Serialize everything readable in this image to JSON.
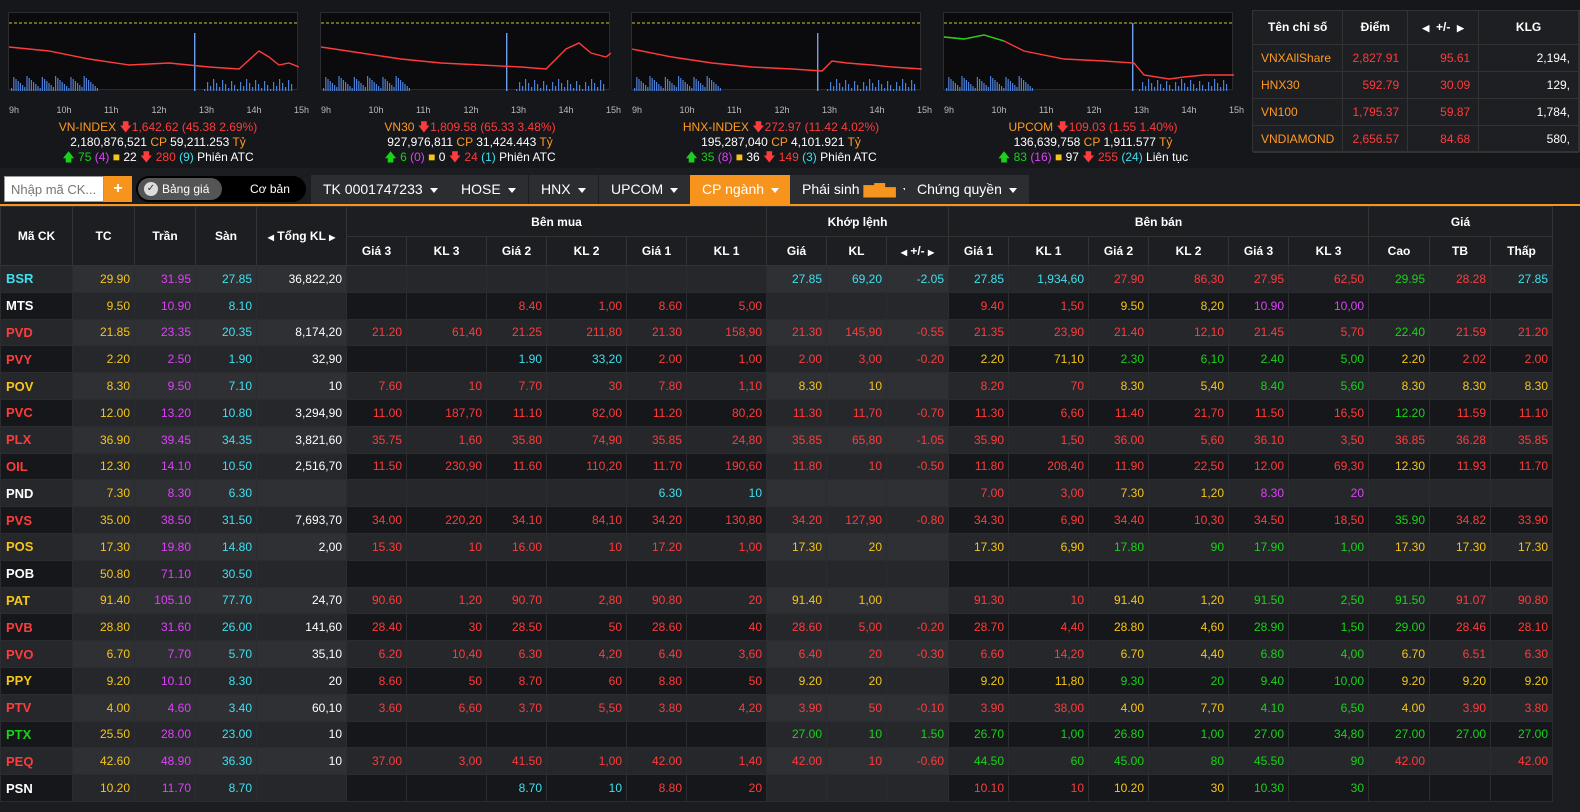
{
  "colors": {
    "up": "#19d219",
    "down": "#ff3b3b",
    "ref": "#f5c518",
    "ceil": "#e040fb",
    "floor": "#3ee0f0",
    "accent": "#f7941d"
  },
  "time_ticks": [
    "9h",
    "10h",
    "11h",
    "12h",
    "13h",
    "14h",
    "15h"
  ],
  "indices": [
    {
      "name": "VN-INDEX",
      "value": "1,642.62",
      "change": "(45.38 2.69%)",
      "volume": "2,180,876,521",
      "cp_label": "CP",
      "cp_value": "59,211.253",
      "unit": "Tỷ",
      "adv": "75",
      "ceil": "(4)",
      "unch": "22",
      "dec": "280",
      "floor": "(9)",
      "session": "Phiên ATC"
    },
    {
      "name": "VN30",
      "value": "1,809.58",
      "change": "(65.33 3.48%)",
      "volume": "927,976,811",
      "cp_label": "CP",
      "cp_value": "31,424.443",
      "unit": "Tỷ",
      "adv": "6",
      "ceil": "(0)",
      "unch": "0",
      "dec": "24",
      "floor": "(1)",
      "session": "Phiên ATC"
    },
    {
      "name": "HNX-INDEX",
      "value": "272.97",
      "change": "(11.42 4.02%)",
      "volume": "195,287,040",
      "cp_label": "CP",
      "cp_value": "4,101.921",
      "unit": "Tỷ",
      "adv": "35",
      "ceil": "(8)",
      "unch": "36",
      "dec": "149",
      "floor": "(3)",
      "session": "Phiên ATC"
    },
    {
      "name": "UPCOM",
      "value": "109.03",
      "change": "(1.55 1.40%)",
      "volume": "136,639,758",
      "cp_label": "CP",
      "cp_value": "1,911.577",
      "unit": "Tỷ",
      "adv": "83",
      "ceil": "(16)",
      "unch": "97",
      "dec": "255",
      "floor": "(24)",
      "session": "Liên tục"
    }
  ],
  "summary": {
    "headers": [
      "Tên chỉ số",
      "Điểm",
      "+/-",
      "KLG"
    ],
    "rows": [
      {
        "name": "VNXAllShare",
        "point": "2,827.91",
        "change": "95.61",
        "vol": "2,194,"
      },
      {
        "name": "HNX30",
        "point": "592.79",
        "change": "30.09",
        "vol": "129,"
      },
      {
        "name": "VN100",
        "point": "1,795.37",
        "change": "59.87",
        "vol": "1,784,"
      },
      {
        "name": "VNDIAMOND",
        "point": "2,656.57",
        "change": "84.68",
        "vol": "580,"
      }
    ]
  },
  "toolbar": {
    "search_placeholder": "Nhập mã CK...",
    "plus": "+",
    "toggle_on": "Bảng giá",
    "toggle_off": "Cơ bản",
    "tabs": [
      "TK 0001747233",
      "HOSE",
      "HNX",
      "UPCOM",
      "CP ngành",
      "Phái sinh",
      "Chứng quyền"
    ]
  },
  "grid": {
    "group_headers": {
      "sym": "Mã CK",
      "tc": "TC",
      "tran": "Trần",
      "san": "Sàn",
      "tkl": "Tổng KL",
      "buy": "Bên mua",
      "match": "Khớp lệnh",
      "sell": "Bên bán",
      "price": "Giá"
    },
    "sub_headers": {
      "buy": [
        "Giá 3",
        "KL 3",
        "Giá 2",
        "KL 2",
        "Giá 1",
        "KL 1"
      ],
      "match": [
        "Giá",
        "KL",
        "+/-"
      ],
      "sell": [
        "Giá 1",
        "KL 1",
        "Giá 2",
        "KL 2",
        "Giá 3",
        "KL 3"
      ],
      "price": [
        "Cao",
        "TB",
        "Thấp"
      ]
    },
    "rows": [
      {
        "c": "f",
        "v": [
          "BSR",
          "29.90",
          "31.95",
          "27.85",
          "36,822,20",
          "",
          "",
          "",
          "",
          "",
          "",
          "27.85",
          "69,20",
          "-2.05",
          "27.85",
          "1,934,60",
          "27.90",
          "86,30",
          "27.95",
          "62,50",
          "29.95",
          "28.28",
          "27.85"
        ],
        "k": [
          "f",
          "r",
          "c",
          "f",
          "w",
          "",
          "",
          "",
          "",
          "",
          "",
          "f",
          "f",
          "f",
          "f",
          "f",
          "d",
          "d",
          "d",
          "d",
          "u",
          "d",
          "f"
        ]
      },
      {
        "c": "w",
        "v": [
          "MTS",
          "9.50",
          "10.90",
          "8.10",
          "",
          "",
          "",
          "8.40",
          "1,00",
          "8.60",
          "5,00",
          "",
          "",
          "",
          "9.40",
          "1,50",
          "9.50",
          "8,20",
          "10.90",
          "10,00",
          "",
          "",
          ""
        ],
        "k": [
          "w",
          "r",
          "c",
          "f",
          "w",
          "",
          "",
          "d",
          "d",
          "d",
          "d",
          "",
          "",
          "",
          "d",
          "d",
          "r",
          "r",
          "c",
          "c",
          "",
          "",
          ""
        ]
      },
      {
        "c": "d",
        "v": [
          "PVD",
          "21.85",
          "23.35",
          "20.35",
          "8,174,20",
          "21.20",
          "61,40",
          "21.25",
          "211,80",
          "21.30",
          "158,90",
          "21.30",
          "145,90",
          "-0.55",
          "21.35",
          "23,90",
          "21.40",
          "12,10",
          "21.45",
          "5,70",
          "22.40",
          "21.59",
          "21.20"
        ],
        "k": [
          "d",
          "r",
          "c",
          "f",
          "w",
          "d",
          "d",
          "d",
          "d",
          "d",
          "d",
          "d",
          "d",
          "d",
          "d",
          "d",
          "d",
          "d",
          "d",
          "d",
          "u",
          "d",
          "d"
        ]
      },
      {
        "c": "d",
        "v": [
          "PVY",
          "2.20",
          "2.50",
          "1.90",
          "32,90",
          "",
          "",
          "1.90",
          "33,20",
          "2.00",
          "1,00",
          "2.00",
          "3,00",
          "-0.20",
          "2.20",
          "71,10",
          "2.30",
          "6,10",
          "2.40",
          "5,00",
          "2.20",
          "2.02",
          "2.00"
        ],
        "k": [
          "d",
          "r",
          "c",
          "f",
          "w",
          "",
          "",
          "f",
          "f",
          "d",
          "d",
          "d",
          "d",
          "d",
          "r",
          "r",
          "u",
          "u",
          "u",
          "u",
          "r",
          "d",
          "d"
        ]
      },
      {
        "c": "r",
        "v": [
          "POV",
          "8.30",
          "9.50",
          "7.10",
          "10",
          "7.60",
          "10",
          "7.70",
          "30",
          "7.80",
          "1,10",
          "8.30",
          "10",
          "",
          "8.20",
          "70",
          "8.30",
          "5,40",
          "8.40",
          "5,60",
          "8.30",
          "8.30",
          "8.30"
        ],
        "k": [
          "r",
          "r",
          "c",
          "f",
          "w",
          "d",
          "d",
          "d",
          "d",
          "d",
          "d",
          "r",
          "r",
          "",
          "d",
          "d",
          "r",
          "r",
          "u",
          "u",
          "r",
          "r",
          "r"
        ]
      },
      {
        "c": "d",
        "v": [
          "PVC",
          "12.00",
          "13.20",
          "10.80",
          "3,294,90",
          "11.00",
          "187,70",
          "11.10",
          "82,00",
          "11.20",
          "80,20",
          "11.30",
          "11,70",
          "-0.70",
          "11.30",
          "6,60",
          "11.40",
          "21,70",
          "11.50",
          "16,50",
          "12.20",
          "11.59",
          "11.10"
        ],
        "k": [
          "d",
          "r",
          "c",
          "f",
          "w",
          "d",
          "d",
          "d",
          "d",
          "d",
          "d",
          "d",
          "d",
          "d",
          "d",
          "d",
          "d",
          "d",
          "d",
          "d",
          "u",
          "d",
          "d"
        ]
      },
      {
        "c": "d",
        "v": [
          "PLX",
          "36.90",
          "39.45",
          "34.35",
          "3,821,60",
          "35.75",
          "1,60",
          "35.80",
          "74,90",
          "35.85",
          "24,80",
          "35.85",
          "65,80",
          "-1.05",
          "35.90",
          "1,50",
          "36.00",
          "5,60",
          "36.10",
          "3,50",
          "36.85",
          "36.28",
          "35.85"
        ],
        "k": [
          "d",
          "r",
          "c",
          "f",
          "w",
          "d",
          "d",
          "d",
          "d",
          "d",
          "d",
          "d",
          "d",
          "d",
          "d",
          "d",
          "d",
          "d",
          "d",
          "d",
          "d",
          "d",
          "d"
        ]
      },
      {
        "c": "d",
        "v": [
          "OIL",
          "12.30",
          "14.10",
          "10.50",
          "2,516,70",
          "11.50",
          "230,90",
          "11.60",
          "110,20",
          "11.70",
          "190,60",
          "11.80",
          "10",
          "-0.50",
          "11.80",
          "208,40",
          "11.90",
          "22,50",
          "12.00",
          "69,30",
          "12.30",
          "11.93",
          "11.70"
        ],
        "k": [
          "d",
          "r",
          "c",
          "f",
          "w",
          "d",
          "d",
          "d",
          "d",
          "d",
          "d",
          "d",
          "d",
          "d",
          "d",
          "d",
          "d",
          "d",
          "d",
          "d",
          "r",
          "d",
          "d"
        ]
      },
      {
        "c": "w",
        "v": [
          "PND",
          "7.30",
          "8.30",
          "6.30",
          "",
          "",
          "",
          "",
          "",
          "6.30",
          "10",
          "",
          "",
          "",
          "7.00",
          "3,00",
          "7.30",
          "1,20",
          "8.30",
          "20",
          "",
          "",
          ""
        ],
        "k": [
          "w",
          "r",
          "c",
          "f",
          "w",
          "",
          "",
          "",
          "",
          "f",
          "f",
          "",
          "",
          "",
          "d",
          "d",
          "r",
          "r",
          "c",
          "c",
          "",
          "",
          ""
        ]
      },
      {
        "c": "d",
        "v": [
          "PVS",
          "35.00",
          "38.50",
          "31.50",
          "7,693,70",
          "34.00",
          "220,20",
          "34.10",
          "84,10",
          "34.20",
          "130,80",
          "34.20",
          "127,90",
          "-0.80",
          "34.30",
          "6,90",
          "34.40",
          "10,30",
          "34.50",
          "18,50",
          "35.90",
          "34.82",
          "33.90"
        ],
        "k": [
          "d",
          "r",
          "c",
          "f",
          "w",
          "d",
          "d",
          "d",
          "d",
          "d",
          "d",
          "d",
          "d",
          "d",
          "d",
          "d",
          "d",
          "d",
          "d",
          "d",
          "u",
          "d",
          "d"
        ]
      },
      {
        "c": "r",
        "v": [
          "POS",
          "17.30",
          "19.80",
          "14.80",
          "2,00",
          "15.30",
          "10",
          "16.00",
          "10",
          "17.20",
          "1,00",
          "17.30",
          "20",
          "",
          "17.30",
          "6,90",
          "17.80",
          "90",
          "17.90",
          "1,00",
          "17.30",
          "17.30",
          "17.30"
        ],
        "k": [
          "r",
          "r",
          "c",
          "f",
          "w",
          "d",
          "d",
          "d",
          "d",
          "d",
          "d",
          "r",
          "r",
          "",
          "r",
          "r",
          "u",
          "u",
          "u",
          "u",
          "r",
          "r",
          "r"
        ]
      },
      {
        "c": "w",
        "v": [
          "POB",
          "50.80",
          "71.10",
          "30.50",
          "",
          "",
          "",
          "",
          "",
          "",
          "",
          "",
          "",
          "",
          "",
          "",
          "",
          "",
          "",
          "",
          "",
          "",
          ""
        ],
        "k": [
          "w",
          "r",
          "c",
          "f",
          "w",
          "",
          "",
          "",
          "",
          "",
          "",
          "",
          "",
          "",
          "",
          "",
          "",
          "",
          "",
          "",
          "",
          "",
          ""
        ]
      },
      {
        "c": "r",
        "v": [
          "PAT",
          "91.40",
          "105.10",
          "77.70",
          "24,70",
          "90.60",
          "1,20",
          "90.70",
          "2,80",
          "90.80",
          "20",
          "91.40",
          "1,00",
          "",
          "91.30",
          "10",
          "91.40",
          "1,20",
          "91.50",
          "2,50",
          "91.50",
          "91.07",
          "90.80"
        ],
        "k": [
          "r",
          "r",
          "c",
          "f",
          "w",
          "d",
          "d",
          "d",
          "d",
          "d",
          "d",
          "r",
          "r",
          "",
          "d",
          "d",
          "r",
          "r",
          "u",
          "u",
          "u",
          "d",
          "d"
        ]
      },
      {
        "c": "d",
        "v": [
          "PVB",
          "28.80",
          "31.60",
          "26.00",
          "141,60",
          "28.40",
          "30",
          "28.50",
          "50",
          "28.60",
          "40",
          "28.60",
          "5,00",
          "-0.20",
          "28.70",
          "4,40",
          "28.80",
          "4,60",
          "28.90",
          "1,50",
          "29.00",
          "28.46",
          "28.10"
        ],
        "k": [
          "d",
          "r",
          "c",
          "f",
          "w",
          "d",
          "d",
          "d",
          "d",
          "d",
          "d",
          "d",
          "d",
          "d",
          "d",
          "d",
          "r",
          "r",
          "u",
          "u",
          "u",
          "d",
          "d"
        ]
      },
      {
        "c": "d",
        "v": [
          "PVO",
          "6.70",
          "7.70",
          "5.70",
          "35,10",
          "6.20",
          "10,40",
          "6.30",
          "4,20",
          "6.40",
          "3,60",
          "6.40",
          "20",
          "-0.30",
          "6.60",
          "14,20",
          "6.70",
          "4,40",
          "6.80",
          "4,00",
          "6.70",
          "6.51",
          "6.30"
        ],
        "k": [
          "d",
          "r",
          "c",
          "f",
          "w",
          "d",
          "d",
          "d",
          "d",
          "d",
          "d",
          "d",
          "d",
          "d",
          "d",
          "d",
          "r",
          "r",
          "u",
          "u",
          "r",
          "d",
          "d"
        ]
      },
      {
        "c": "r",
        "v": [
          "PPY",
          "9.20",
          "10.10",
          "8.30",
          "20",
          "8.60",
          "50",
          "8.70",
          "60",
          "8.80",
          "50",
          "9.20",
          "20",
          "",
          "9.20",
          "11,80",
          "9.30",
          "20",
          "9.40",
          "10,00",
          "9.20",
          "9.20",
          "9.20"
        ],
        "k": [
          "r",
          "r",
          "c",
          "f",
          "w",
          "d",
          "d",
          "d",
          "d",
          "d",
          "d",
          "r",
          "r",
          "",
          "r",
          "r",
          "u",
          "u",
          "u",
          "u",
          "r",
          "r",
          "r"
        ]
      },
      {
        "c": "d",
        "v": [
          "PTV",
          "4.00",
          "4.60",
          "3.40",
          "60,10",
          "3.60",
          "6,60",
          "3.70",
          "5,50",
          "3.80",
          "4,20",
          "3.90",
          "50",
          "-0.10",
          "3.90",
          "38,00",
          "4.00",
          "7,70",
          "4.10",
          "6,50",
          "4.00",
          "3.90",
          "3.80"
        ],
        "k": [
          "d",
          "r",
          "c",
          "f",
          "w",
          "d",
          "d",
          "d",
          "d",
          "d",
          "d",
          "d",
          "d",
          "d",
          "d",
          "d",
          "r",
          "r",
          "u",
          "u",
          "r",
          "d",
          "d"
        ]
      },
      {
        "c": "u",
        "v": [
          "PTX",
          "25.50",
          "28.00",
          "23.00",
          "10",
          "",
          "",
          "",
          "",
          "",
          "",
          "27.00",
          "10",
          "1.50",
          "26.70",
          "1,00",
          "26.80",
          "1,00",
          "27.00",
          "34,80",
          "27.00",
          "27.00",
          "27.00"
        ],
        "k": [
          "u",
          "r",
          "c",
          "f",
          "w",
          "",
          "",
          "",
          "",
          "",
          "",
          "u",
          "u",
          "u",
          "u",
          "u",
          "u",
          "u",
          "u",
          "u",
          "u",
          "u",
          "u"
        ]
      },
      {
        "c": "d",
        "v": [
          "PEQ",
          "42.60",
          "48.90",
          "36.30",
          "10",
          "37.00",
          "3,00",
          "41.50",
          "1,00",
          "42.00",
          "1,40",
          "42.00",
          "10",
          "-0.60",
          "44.50",
          "60",
          "45.00",
          "80",
          "45.50",
          "90",
          "42.00",
          "",
          "42.00"
        ],
        "k": [
          "d",
          "r",
          "c",
          "f",
          "w",
          "d",
          "d",
          "d",
          "d",
          "d",
          "d",
          "d",
          "d",
          "d",
          "u",
          "u",
          "u",
          "u",
          "u",
          "u",
          "d",
          "",
          "d"
        ]
      },
      {
        "c": "w",
        "v": [
          "PSN",
          "10.20",
          "11.70",
          "8.70",
          "",
          "",
          "",
          "8.70",
          "10",
          "8.80",
          "20",
          "",
          "",
          "",
          "10.10",
          "10",
          "10.20",
          "30",
          "10.30",
          "30",
          "",
          "",
          ""
        ],
        "k": [
          "w",
          "r",
          "c",
          "f",
          "w",
          "",
          "",
          "f",
          "f",
          "d",
          "d",
          "",
          "",
          "",
          "d",
          "d",
          "r",
          "r",
          "u",
          "u",
          "",
          "",
          ""
        ]
      }
    ]
  }
}
